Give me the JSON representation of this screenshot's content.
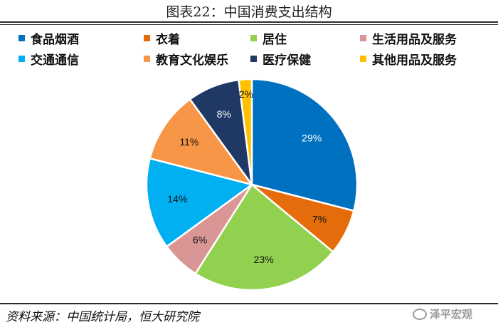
{
  "chart_data": {
    "type": "pie",
    "title": "图表22：中国消费支出结构",
    "categories": [
      "食品烟酒",
      "衣着",
      "居住",
      "生活用品及服务",
      "交通通信",
      "教育文化娱乐",
      "医疗保健",
      "其他用品及服务"
    ],
    "values": [
      29,
      7,
      23,
      6,
      14,
      11,
      8,
      2
    ],
    "value_labels": [
      "29%",
      "7%",
      "23%",
      "6%",
      "14%",
      "11%",
      "8%",
      "2%"
    ],
    "colors": [
      "#0070c0",
      "#e46c0a",
      "#92d050",
      "#d99694",
      "#00b0f0",
      "#f79646",
      "#1f3864",
      "#ffc000"
    ],
    "legend_position": "top",
    "start": "12 o'clock",
    "direction": "clockwise"
  },
  "source_text": "资料来源：中国统计局，恒大研究院",
  "watermark_text": "泽平宏观"
}
